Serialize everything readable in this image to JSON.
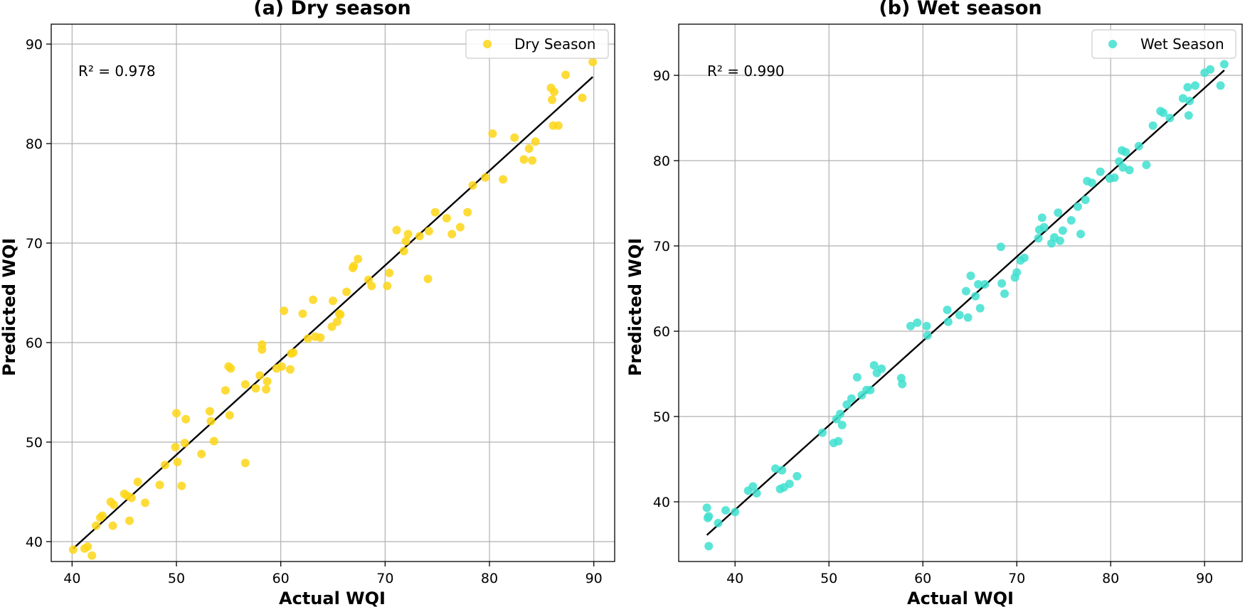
{
  "chart_data": [
    {
      "type": "scatter",
      "title": "(a) Dry season",
      "xlabel": "Actual WQI",
      "ylabel": "Predicted WQI",
      "xlim": [
        38,
        92
      ],
      "ylim": [
        38,
        92
      ],
      "xticks": [
        40,
        50,
        60,
        70,
        80,
        90
      ],
      "yticks": [
        40,
        50,
        60,
        70,
        80,
        90
      ],
      "grid": true,
      "legend": {
        "label": "Dry Season",
        "position": "top-right"
      },
      "annotation": "R² = 0.978",
      "color": "#fdd616",
      "fit_line": {
        "x": [
          40.1,
          89.9
        ],
        "y": [
          39.3,
          86.7
        ]
      },
      "series": [
        {
          "name": "Dry Season",
          "x": [
            40.1,
            41.2,
            41.5,
            41.9,
            42.3,
            42.7,
            42.9,
            43.7,
            43.9,
            44.0,
            45.0,
            45.3,
            45.5,
            45.7,
            46.3,
            47.0,
            48.4,
            48.9,
            49.9,
            50.0,
            50.1,
            50.5,
            50.8,
            50.9,
            52.4,
            53.2,
            53.3,
            53.6,
            54.7,
            55.0,
            55.1,
            55.2,
            56.6,
            56.6,
            57.6,
            58.0,
            58.2,
            58.2,
            58.6,
            58.7,
            59.6,
            60.1,
            60.3,
            60.9,
            61.0,
            61.2,
            62.1,
            62.6,
            63.1,
            63.3,
            63.8,
            64.9,
            65.0,
            65.4,
            65.6,
            65.7,
            66.3,
            66.9,
            67.0,
            67.4,
            68.4,
            68.7,
            70.2,
            70.4,
            71.1,
            71.8,
            72.0,
            72.2,
            73.3,
            74.1,
            74.2,
            74.8,
            75.9,
            76.4,
            77.2,
            77.9,
            78.4,
            79.6,
            80.3,
            81.3,
            82.4,
            83.3,
            83.8,
            84.1,
            84.4,
            85.9,
            86.0,
            86.1,
            86.2,
            86.6,
            87.3,
            88.9,
            89.9
          ],
          "y": [
            39.2,
            39.3,
            39.5,
            38.6,
            41.6,
            42.4,
            42.6,
            44.0,
            41.6,
            43.7,
            44.8,
            44.6,
            42.1,
            44.4,
            46.0,
            43.9,
            45.7,
            47.7,
            49.5,
            52.9,
            48.0,
            45.6,
            49.9,
            52.3,
            48.8,
            53.1,
            52.1,
            50.1,
            55.2,
            57.6,
            52.7,
            57.4,
            47.9,
            55.8,
            55.4,
            56.7,
            59.3,
            59.8,
            55.3,
            56.1,
            57.4,
            57.6,
            63.2,
            57.3,
            58.9,
            59.0,
            62.9,
            60.4,
            64.3,
            60.6,
            60.5,
            61.6,
            64.2,
            62.1,
            62.9,
            62.8,
            65.1,
            67.5,
            67.7,
            68.4,
            66.3,
            65.7,
            65.7,
            67.0,
            71.3,
            69.2,
            70.2,
            70.9,
            70.7,
            66.4,
            71.2,
            73.1,
            72.5,
            70.9,
            71.6,
            73.1,
            75.8,
            76.6,
            81.0,
            76.4,
            80.6,
            78.4,
            79.5,
            78.3,
            80.2,
            85.6,
            84.4,
            81.8,
            85.2,
            81.8,
            86.9,
            84.6,
            88.2
          ]
        }
      ]
    },
    {
      "type": "scatter",
      "title": "(b) Wet season",
      "xlabel": "Actual WQI",
      "ylabel": "Predicted WQI",
      "xlim": [
        34,
        94
      ],
      "ylim": [
        33,
        96
      ],
      "xticks": [
        40,
        50,
        60,
        70,
        80,
        90
      ],
      "yticks": [
        40,
        50,
        60,
        70,
        80,
        90
      ],
      "grid": true,
      "legend": {
        "label": "Wet Season",
        "position": "top-right"
      },
      "annotation": "R² = 0.990",
      "color": "#40e0d0",
      "fit_line": {
        "x": [
          37.0,
          92.1
        ],
        "y": [
          36.1,
          90.6
        ]
      },
      "series": [
        {
          "name": "Wet Season",
          "x": [
            37.0,
            37.1,
            37.2,
            37.2,
            38.2,
            39.0,
            40.0,
            41.4,
            41.9,
            42.3,
            44.3,
            44.8,
            45.0,
            45.2,
            45.8,
            46.6,
            49.3,
            50.5,
            50.8,
            51.0,
            51.2,
            51.4,
            51.9,
            52.4,
            53.0,
            53.5,
            54.0,
            54.4,
            54.8,
            55.1,
            55.6,
            57.7,
            57.8,
            58.7,
            59.4,
            60.4,
            60.5,
            62.6,
            62.7,
            63.9,
            64.6,
            64.8,
            65.1,
            65.6,
            65.9,
            66.1,
            66.6,
            68.3,
            68.4,
            68.7,
            69.8,
            70.0,
            70.4,
            70.8,
            72.3,
            72.4,
            72.7,
            72.9,
            73.7,
            74.0,
            74.4,
            74.6,
            74.9,
            75.8,
            76.5,
            76.8,
            77.3,
            77.5,
            78.0,
            78.9,
            79.9,
            80.4,
            80.9,
            81.2,
            81.3,
            81.6,
            82.0,
            83.0,
            83.8,
            84.5,
            85.3,
            85.6,
            86.3,
            87.7,
            88.2,
            88.3,
            88.4,
            89.0,
            90.0,
            90.6,
            91.7,
            92.1
          ],
          "y": [
            39.3,
            38.1,
            34.8,
            38.3,
            37.5,
            39.0,
            38.8,
            41.3,
            41.8,
            41.0,
            43.9,
            41.5,
            43.7,
            41.7,
            42.1,
            43.0,
            48.1,
            46.9,
            49.7,
            47.1,
            50.3,
            49.0,
            51.4,
            52.1,
            54.6,
            52.5,
            53.1,
            53.1,
            56.0,
            55.1,
            55.6,
            54.5,
            53.8,
            60.6,
            61.0,
            60.6,
            59.5,
            62.5,
            61.1,
            61.9,
            64.7,
            61.6,
            66.5,
            64.1,
            65.5,
            62.7,
            65.5,
            69.9,
            65.6,
            64.4,
            66.3,
            66.9,
            68.3,
            68.6,
            70.9,
            71.9,
            73.3,
            72.2,
            70.3,
            71.0,
            73.9,
            70.6,
            71.8,
            73.0,
            74.6,
            71.4,
            75.4,
            77.6,
            77.4,
            78.7,
            77.9,
            78.0,
            79.9,
            81.2,
            79.2,
            81.0,
            78.9,
            81.7,
            79.5,
            84.1,
            85.8,
            85.6,
            85.0,
            87.3,
            88.6,
            85.3,
            87.0,
            88.8,
            90.3,
            90.7,
            88.8,
            91.3
          ]
        }
      ]
    }
  ]
}
